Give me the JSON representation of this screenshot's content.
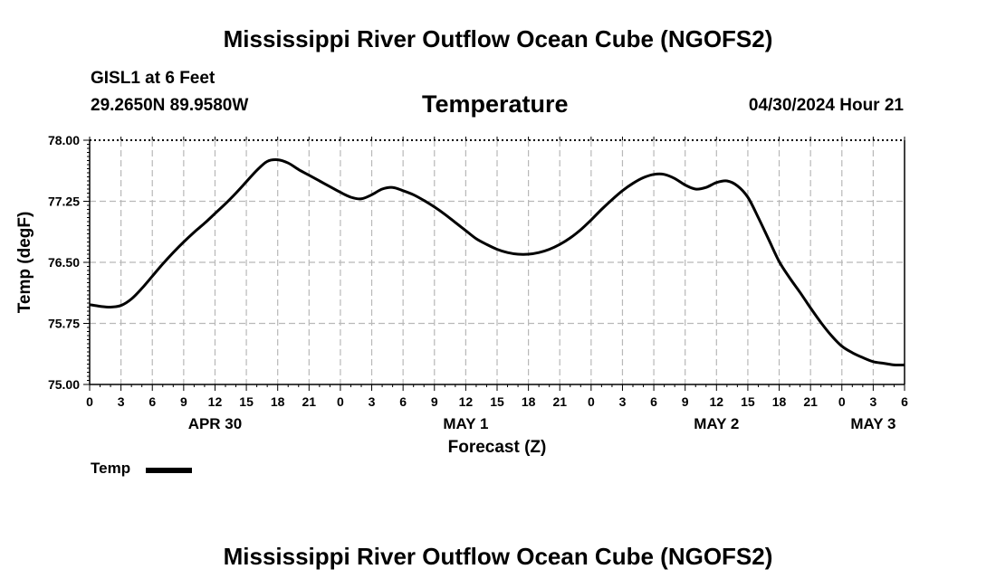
{
  "page": {
    "main_title": "Mississippi River Outflow Ocean Cube (NGOFS2)",
    "footer_title": "Mississippi River Outflow Ocean Cube (NGOFS2)",
    "station": "GISL1 at 6 Feet",
    "coordinates": "29.2650N  89.9580W",
    "timestamp": "04/30/2024 Hour 21"
  },
  "chart_data": {
    "type": "line",
    "title": "Temperature",
    "xlabel": "Forecast (Z)",
    "ylabel": "Temp (degF)",
    "ylim": [
      75.0,
      78.0
    ],
    "yticks": [
      "75.00",
      "75.75",
      "76.50",
      "77.25",
      "78.00"
    ],
    "yvalues": [
      75.0,
      75.75,
      76.5,
      77.25,
      78.0
    ],
    "xlim": [
      0,
      78
    ],
    "xticks": [
      "0",
      "3",
      "6",
      "9",
      "12",
      "15",
      "18",
      "21",
      "0",
      "3",
      "6",
      "9",
      "12",
      "15",
      "18",
      "21",
      "0",
      "3",
      "6",
      "9",
      "12",
      "15",
      "18",
      "21",
      "0",
      "3",
      "6"
    ],
    "day_labels": [
      {
        "label": "APR 30",
        "hour": 12
      },
      {
        "label": "MAY 1",
        "hour": 36
      },
      {
        "label": "MAY 2",
        "hour": 60
      },
      {
        "label": "MAY 3",
        "hour": 75
      }
    ],
    "grid": true,
    "legend": "bottom-left",
    "series": [
      {
        "name": "Temp",
        "color": "#000000",
        "x": [
          0,
          1,
          2,
          3,
          4,
          5,
          6,
          7,
          8,
          9,
          10,
          11,
          12,
          13,
          14,
          15,
          16,
          17,
          18,
          19,
          20,
          21,
          22,
          23,
          24,
          25,
          26,
          27,
          28,
          29,
          30,
          31,
          32,
          33,
          34,
          35,
          36,
          37,
          38,
          39,
          40,
          41,
          42,
          43,
          44,
          45,
          46,
          47,
          48,
          49,
          50,
          51,
          52,
          53,
          54,
          55,
          56,
          57,
          58,
          59,
          60,
          61,
          62,
          63,
          64,
          65,
          66,
          67,
          68,
          69,
          70,
          71,
          72,
          73,
          74,
          75,
          76,
          77,
          78
        ],
        "values": [
          75.98,
          75.96,
          75.95,
          75.97,
          76.05,
          76.18,
          76.33,
          76.48,
          76.62,
          76.75,
          76.87,
          76.98,
          77.1,
          77.22,
          77.35,
          77.49,
          77.63,
          77.74,
          77.76,
          77.72,
          77.64,
          77.57,
          77.5,
          77.43,
          77.36,
          77.3,
          77.28,
          77.33,
          77.4,
          77.42,
          77.38,
          77.33,
          77.26,
          77.18,
          77.09,
          76.99,
          76.89,
          76.79,
          76.72,
          76.66,
          76.62,
          76.6,
          76.6,
          76.62,
          76.66,
          76.72,
          76.8,
          76.9,
          77.02,
          77.15,
          77.27,
          77.38,
          77.47,
          77.54,
          77.58,
          77.58,
          77.53,
          77.45,
          77.4,
          77.42,
          77.48,
          77.5,
          77.44,
          77.3,
          77.05,
          76.78,
          76.51,
          76.31,
          76.13,
          75.94,
          75.76,
          75.6,
          75.47,
          75.39,
          75.33,
          75.28,
          75.26,
          75.24,
          75.24
        ]
      }
    ]
  }
}
